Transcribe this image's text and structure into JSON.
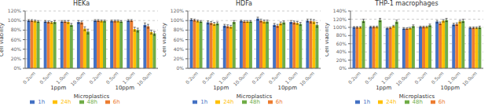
{
  "chart_data": [
    {
      "type": "bar",
      "title": "HEKa",
      "xlabel": "Microplastics",
      "ylabel": "Cell viability",
      "categories": [
        "0.2um",
        "0.5um",
        "1.0um",
        "10.0um",
        "0.2um",
        "0.5um",
        "1.0um",
        "10.0um"
      ],
      "annotations": [
        "1ppm",
        "10ppm"
      ],
      "series": [
        {
          "name": "1h",
          "color": "#4472c4",
          "values": [
            1.0,
            0.98,
            0.98,
            0.97,
            1.0,
            0.99,
            1.0,
            0.91
          ],
          "errors": [
            0.02,
            0.02,
            0.02,
            0.03,
            0.02,
            0.02,
            0.02,
            0.04
          ]
        },
        {
          "name": "6h",
          "color": "#ed7d31",
          "values": [
            1.0,
            0.97,
            0.98,
            0.96,
            1.0,
            0.99,
            1.0,
            0.88
          ],
          "errors": [
            0.02,
            0.02,
            0.02,
            0.03,
            0.02,
            0.02,
            0.02,
            0.04
          ]
        },
        {
          "name": "24h",
          "color": "#ffc000",
          "values": [
            0.99,
            0.96,
            0.97,
            0.83,
            0.99,
            0.99,
            0.82,
            0.76
          ],
          "errors": [
            0.02,
            0.02,
            0.03,
            0.04,
            0.02,
            0.02,
            0.04,
            0.04
          ]
        },
        {
          "name": "48h",
          "color": "#70ad47",
          "values": [
            0.98,
            0.97,
            0.91,
            0.77,
            0.99,
            0.98,
            0.8,
            0.73
          ],
          "errors": [
            0.02,
            0.03,
            0.03,
            0.05,
            0.02,
            0.02,
            0.04,
            0.04
          ]
        }
      ],
      "ylim": [
        0,
        1.2
      ],
      "yticks": [
        {
          "value": 0,
          "label": "0%"
        },
        {
          "value": 0.2,
          "label": "20%"
        },
        {
          "value": 0.4,
          "label": "40%"
        },
        {
          "value": 0.6,
          "label": "60%"
        },
        {
          "value": 0.8,
          "label": "80%"
        },
        {
          "value": 1.0,
          "label": "100%"
        },
        {
          "value": 1.2,
          "label": "120%"
        }
      ],
      "grid": true,
      "legend": "bottom"
    },
    {
      "type": "bar",
      "title": "HDFa",
      "xlabel": "Microplastics",
      "ylabel": "Cell viability",
      "categories": [
        "0.2um",
        "0.5um",
        "1.0um",
        "10.0um",
        "0.2um",
        "0.5um",
        "1.0um",
        "10.0um"
      ],
      "annotations": [
        "1ppm",
        "10ppm"
      ],
      "series": [
        {
          "name": "1h",
          "color": "#4472c4",
          "values": [
            1.02,
            0.96,
            0.89,
            0.99,
            1.04,
            0.91,
            0.97,
            1.0
          ],
          "errors": [
            0.02,
            0.03,
            0.03,
            0.02,
            0.03,
            0.03,
            0.03,
            0.03
          ]
        },
        {
          "name": "6h",
          "color": "#ed7d31",
          "values": [
            1.01,
            0.95,
            0.88,
            0.98,
            1.0,
            0.89,
            0.96,
            0.99
          ],
          "errors": [
            0.02,
            0.03,
            0.03,
            0.02,
            0.03,
            0.03,
            0.03,
            0.04
          ]
        },
        {
          "name": "24h",
          "color": "#ffc000",
          "values": [
            0.99,
            0.93,
            0.87,
            0.98,
            0.98,
            0.94,
            0.95,
            0.98
          ],
          "errors": [
            0.02,
            0.03,
            0.03,
            0.02,
            0.03,
            0.03,
            0.03,
            0.04
          ]
        },
        {
          "name": "48h",
          "color": "#70ad47",
          "values": [
            0.98,
            0.94,
            0.97,
            0.98,
            0.98,
            0.96,
            0.93,
            0.91
          ],
          "errors": [
            0.02,
            0.03,
            0.03,
            0.02,
            0.03,
            0.03,
            0.03,
            0.05
          ]
        }
      ],
      "ylim": [
        0,
        1.2
      ],
      "yticks": [
        {
          "value": 0,
          "label": "0%"
        },
        {
          "value": 0.2,
          "label": "20%"
        },
        {
          "value": 0.4,
          "label": "40%"
        },
        {
          "value": 0.6,
          "label": "60%"
        },
        {
          "value": 0.8,
          "label": "80%"
        },
        {
          "value": 1.0,
          "label": "100%"
        },
        {
          "value": 1.2,
          "label": "120%"
        }
      ],
      "grid": true,
      "legend": "bottom"
    },
    {
      "type": "bar",
      "title": "THP-1 macrophages",
      "xlabel": "Microplastics",
      "ylabel": "Cell viability",
      "categories": [
        "0.2um",
        "0.5um",
        "1.0um",
        "10.0um",
        "0.2um",
        "0.5um",
        "1.0um",
        "10.0um"
      ],
      "annotations": [
        "1ppm",
        "10ppm"
      ],
      "series": [
        {
          "name": "1h",
          "color": "#4472c4",
          "values": [
            1.0,
            1.01,
            0.98,
            0.97,
            1.01,
            1.14,
            1.07,
            0.99
          ],
          "errors": [
            0.02,
            0.02,
            0.02,
            0.02,
            0.02,
            0.03,
            0.03,
            0.02
          ]
        },
        {
          "name": "6h",
          "color": "#ed7d31",
          "values": [
            1.0,
            1.01,
            0.99,
            0.97,
            1.01,
            1.1,
            1.08,
            0.99
          ],
          "errors": [
            0.02,
            0.02,
            0.02,
            0.02,
            0.02,
            0.03,
            0.03,
            0.02
          ]
        },
        {
          "name": "24h",
          "color": "#ffc000",
          "values": [
            1.0,
            1.01,
            1.03,
            0.98,
            1.01,
            1.16,
            1.14,
            0.99
          ],
          "errors": [
            0.02,
            0.02,
            0.02,
            0.02,
            0.02,
            0.03,
            0.03,
            0.02
          ]
        },
        {
          "name": "48h",
          "color": "#70ad47",
          "values": [
            1.16,
            1.18,
            1.14,
            1.03,
            1.05,
            1.18,
            1.16,
            1.0
          ],
          "errors": [
            0.04,
            0.04,
            0.04,
            0.03,
            0.03,
            0.04,
            0.04,
            0.03
          ]
        }
      ],
      "ylim": [
        0,
        1.4
      ],
      "yticks": [
        {
          "value": 0,
          "label": "0%"
        },
        {
          "value": 0.2,
          "label": "20%"
        },
        {
          "value": 0.4,
          "label": "40%"
        },
        {
          "value": 0.6,
          "label": "60%"
        },
        {
          "value": 0.8,
          "label": "80%"
        },
        {
          "value": 1.0,
          "label": "100%"
        },
        {
          "value": 1.2,
          "label": "120%"
        },
        {
          "value": 1.4,
          "label": "140%"
        }
      ],
      "grid": true,
      "legend": "bottom"
    }
  ]
}
